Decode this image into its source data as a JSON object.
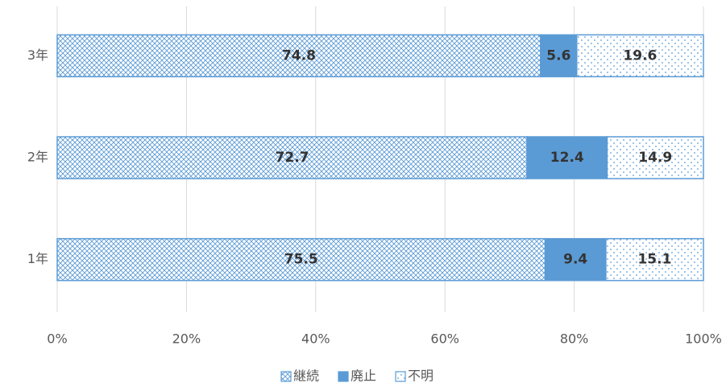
{
  "chart_data": {
    "type": "stacked_barh",
    "categories": [
      "3年",
      "2年",
      "1年"
    ],
    "series": [
      {
        "name": "継続",
        "color": "#5b9bd5",
        "pattern": "crosshatch",
        "values": [
          74.8,
          72.7,
          75.5
        ]
      },
      {
        "name": "廃止",
        "color": "#5b9bd5",
        "pattern": "solid",
        "values": [
          5.6,
          12.4,
          9.4
        ]
      },
      {
        "name": "不明",
        "color": "#5b9bd5",
        "pattern": "dots",
        "values": [
          19.6,
          14.9,
          15.1
        ]
      }
    ],
    "xlim": [
      0,
      100
    ],
    "xticks": [
      {
        "value": 0,
        "label": "0%"
      },
      {
        "value": 20,
        "label": "20%"
      },
      {
        "value": 40,
        "label": "40%"
      },
      {
        "value": 60,
        "label": "60%"
      },
      {
        "value": 80,
        "label": "80%"
      },
      {
        "value": 100,
        "label": "100%"
      }
    ],
    "grid": true,
    "legend": "bottom"
  }
}
